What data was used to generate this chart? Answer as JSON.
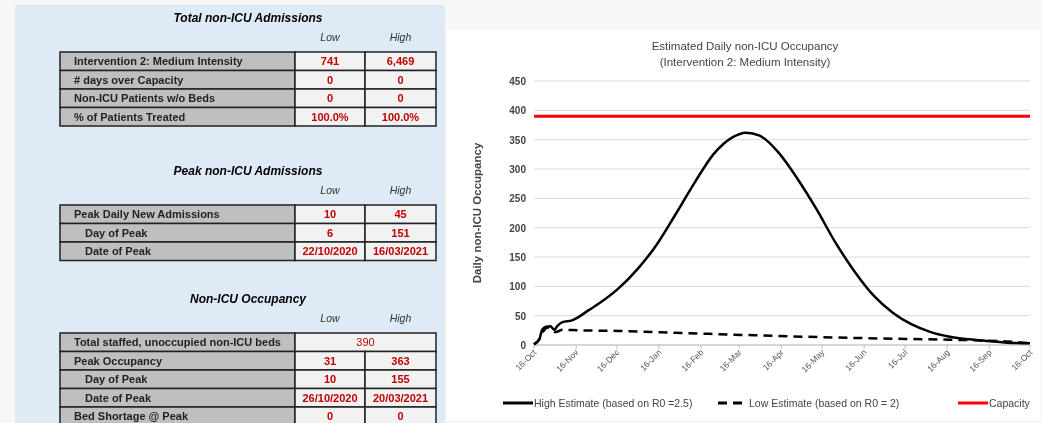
{
  "chart_data": [
    {
      "type": "other",
      "title": "Total non-ICU Admissions",
      "annotations": [
        "Low",
        "High",
        "Intervention 2: Medium Intensity",
        "741",
        "6,469",
        "# days over Capacity",
        "0",
        "0",
        "Non-ICU Patients w/o Beds",
        "0",
        "0",
        "% of Patients Treated",
        "100.0%",
        "100.0%"
      ]
    },
    {
      "type": "other",
      "title": "Peak non-ICU Admissions",
      "annotations": [
        "Low",
        "High",
        "Peak Daily New Admissions",
        "10",
        "45",
        "Day of Peak",
        "6",
        "151",
        "Date of Peak",
        "22/10/2020",
        "16/03/2021"
      ]
    },
    {
      "type": "other",
      "title": "Non-ICU Occupancy",
      "annotations": [
        "Low",
        "High",
        "Total staffed, unoccupied non-ICU beds",
        "390",
        "Peak Occupancy",
        "31",
        "363",
        "Day of Peak",
        "10",
        "155",
        "Date of Peak",
        "26/10/2020",
        "20/03/2021",
        "Bed Shortage @ Peak",
        "0",
        "0"
      ]
    },
    {
      "type": "line",
      "title": "Estimated Daily non-ICU Occupancy",
      "subtitle": "(Intervention 2: Medium Intensity)",
      "ylabel": "Daily non-ICU Occupancy",
      "ylim": [
        0,
        450
      ],
      "yticks": [
        0,
        50,
        100,
        150,
        200,
        250,
        300,
        350,
        400,
        450
      ],
      "xlim": [
        "2020-10-16",
        "2021-10-16"
      ],
      "xticks": [
        {
          "value": "2020-10-16",
          "label": "16-Oct"
        },
        {
          "value": "2020-11-16",
          "label": "16-Nov"
        },
        {
          "value": "2020-12-16",
          "label": "16-Dec"
        },
        {
          "value": "2021-01-16",
          "label": "16-Jan"
        },
        {
          "value": "2021-02-16",
          "label": "16-Feb"
        },
        {
          "value": "2021-03-16",
          "label": "16-Mar"
        },
        {
          "value": "2021-04-16",
          "label": "16-Apr"
        },
        {
          "value": "2021-05-16",
          "label": "16-May"
        },
        {
          "value": "2021-06-16",
          "label": "16-Jun"
        },
        {
          "value": "2021-07-16",
          "label": "16-Jul"
        },
        {
          "value": "2021-08-16",
          "label": "16-Aug"
        },
        {
          "value": "2021-09-16",
          "label": "16-Sep"
        },
        {
          "value": "2021-10-16",
          "label": "16-Oct"
        }
      ],
      "grid": "y",
      "legend": "bottom",
      "ref_lines": [
        {
          "axis": "y",
          "value": 390,
          "label": "Capacity",
          "color": "#ff0000"
        }
      ],
      "series": [
        {
          "name": "High Estimate (based on R0 =2.5)",
          "color": "#000000",
          "line_style": "solid",
          "x": [
            "2020-10-16",
            "2020-10-20",
            "2020-10-22",
            "2020-10-25",
            "2020-10-28",
            "2020-10-31",
            "2020-11-02",
            "2020-11-06",
            "2020-11-13",
            "2020-11-18",
            "2020-11-25",
            "2020-12-03",
            "2020-12-17",
            "2020-12-31",
            "2021-01-14",
            "2021-01-28",
            "2021-02-11",
            "2021-02-25",
            "2021-03-11",
            "2021-03-21",
            "2021-03-31",
            "2021-04-14",
            "2021-04-28",
            "2021-05-12",
            "2021-05-26",
            "2021-06-09",
            "2021-06-23",
            "2021-07-07",
            "2021-07-21",
            "2021-08-04",
            "2021-08-18",
            "2021-09-09",
            "2021-09-29",
            "2021-10-16"
          ],
          "values": [
            1,
            10,
            26,
            31,
            32,
            26,
            32,
            39,
            42,
            48,
            59,
            71,
            96,
            129,
            170,
            222,
            276,
            325,
            354,
            362,
            357,
            328,
            283,
            231,
            174,
            125,
            84,
            55,
            35,
            22,
            14,
            8,
            4,
            3
          ]
        },
        {
          "name": "Low Estimate (based on R0 = 2)",
          "color": "#000000",
          "line_style": "dashed",
          "x": [
            "2020-10-16",
            "2020-10-20",
            "2020-10-23",
            "2020-10-26",
            "2020-11-01",
            "2020-11-06",
            "2020-11-18",
            "2020-12-17",
            "2021-01-14",
            "2021-03-21",
            "2021-06-09",
            "2021-08-18",
            "2021-09-29",
            "2021-10-16"
          ],
          "values": [
            1,
            10,
            24,
            30,
            22,
            26,
            25,
            24,
            22,
            17,
            12,
            9,
            6,
            3
          ]
        }
      ]
    }
  ]
}
